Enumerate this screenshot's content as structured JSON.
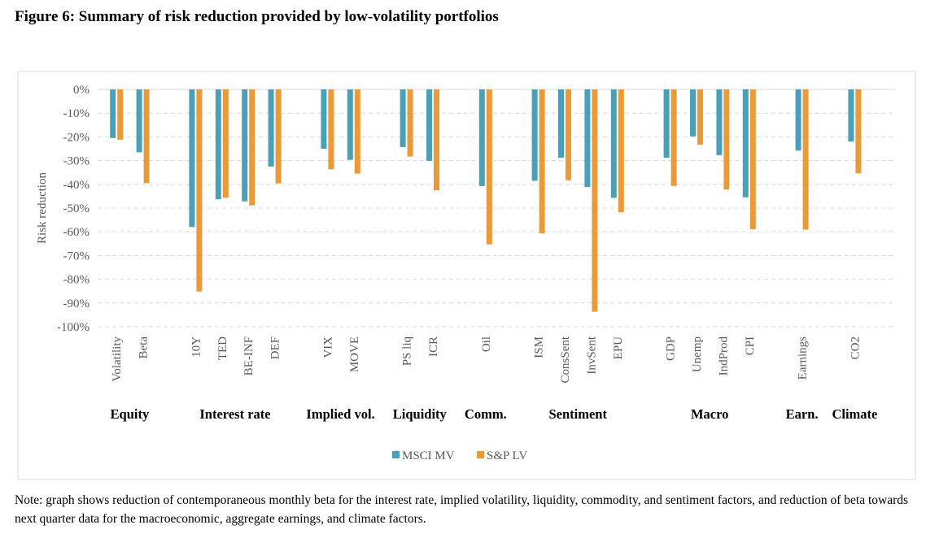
{
  "figure": {
    "title": "Figure 6: Summary of risk reduction provided by low-volatility portfolios",
    "note": "Note: graph shows reduction of contemporaneous monthly beta for the interest rate, implied volatility, liquidity, commodity, and sentiment factors, and reduction of beta towards next quarter data for the macroeconomic, aggregate earnings, and climate factors."
  },
  "chart_data": {
    "type": "bar",
    "ylabel": "Risk reduction",
    "ylim": [
      -100,
      0
    ],
    "yticks": [
      "0%",
      "-10%",
      "-20%",
      "-30%",
      "-40%",
      "-50%",
      "-60%",
      "-70%",
      "-80%",
      "-90%",
      "-100%"
    ],
    "grid": true,
    "legend_position": "bottom",
    "colors": {
      "MSCI MV": "#4a9fb9",
      "S&P LV": "#ec9a37"
    },
    "groups": [
      {
        "label": "Equity",
        "categories": [
          "Volatility",
          "Beta"
        ]
      },
      {
        "label": "Interest rate",
        "categories": [
          "10Y",
          "TED",
          "BE-INF",
          "DEF"
        ]
      },
      {
        "label": "Implied vol.",
        "categories": [
          "VIX",
          "MOVE"
        ]
      },
      {
        "label": "Liquidity",
        "categories": [
          "PS liq",
          "ICR"
        ]
      },
      {
        "label": "Comm.",
        "categories": [
          "Oil"
        ]
      },
      {
        "label": "Sentiment",
        "categories": [
          "ISM",
          "ConsSent",
          "InvSent",
          "EPU"
        ]
      },
      {
        "label": "Macro",
        "categories": [
          "GDP",
          "Unemp",
          "IndProd",
          "CPI"
        ]
      },
      {
        "label": "Earn.",
        "categories": [
          "Earnings"
        ]
      },
      {
        "label": "Climate",
        "categories": [
          "CO2"
        ]
      }
    ],
    "categories": [
      "Volatility",
      "Beta",
      "10Y",
      "TED",
      "BE-INF",
      "DEF",
      "VIX",
      "MOVE",
      "PS liq",
      "ICR",
      "Oil",
      "ISM",
      "ConsSent",
      "InvSent",
      "EPU",
      "GDP",
      "Unemp",
      "IndProd",
      "CPI",
      "Earnings",
      "CO2"
    ],
    "series": [
      {
        "name": "MSCI MV",
        "values": [
          -20.5,
          -26.5,
          -58,
          -46.3,
          -47.2,
          -32.5,
          -25,
          -29.7,
          -24.3,
          -30.1,
          -40.7,
          -38.5,
          -28.8,
          -41.1,
          -45.7,
          -28.8,
          -19.8,
          -27.7,
          -45.5,
          -25.8,
          -22
        ]
      },
      {
        "name": "S&P LV",
        "values": [
          -21.2,
          -39.5,
          -85.2,
          -45.7,
          -48.9,
          -39.6,
          -33.7,
          -35.5,
          -28.3,
          -42.5,
          -65.3,
          -60.6,
          -38.3,
          -93.7,
          -51.8,
          -40.7,
          -23.3,
          -42.2,
          -58.9,
          -59.1,
          -35.4
        ]
      }
    ]
  }
}
